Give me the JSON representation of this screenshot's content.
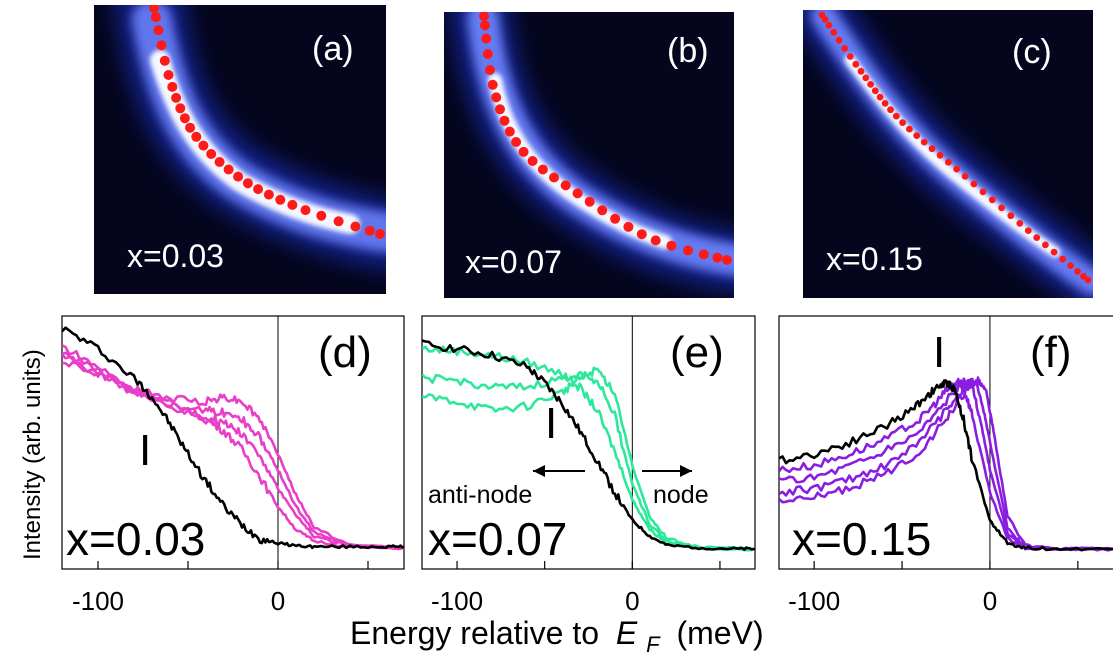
{
  "figure": {
    "xlabel": "Energy relative to",
    "xlabel_symbol": "E",
    "xlabel_subscript": "F",
    "xlabel_units": "(meV)",
    "ylabel": "Intensity  (arb. units)"
  },
  "maps": [
    {
      "label": "(a)",
      "doping_text": "x=0.03",
      "n_points": 28
    },
    {
      "label": "(b)",
      "doping_text": "x=0.07",
      "n_points": 28
    },
    {
      "label": "(c)",
      "doping_text": "x=0.15",
      "n_points": 40
    }
  ],
  "edc_panels": [
    {
      "label": "(d)",
      "doping_text": "x=0.03",
      "marker": "I",
      "color": "#e83ec8"
    },
    {
      "label": "(e)",
      "doping_text": "x=0.07",
      "marker": "I",
      "color": "#2de89a",
      "arrow_left_label": "anti-node",
      "arrow_right_label": "node"
    },
    {
      "label": "(f)",
      "doping_text": "x=0.15",
      "marker": "I",
      "color": "#8a1ee0"
    }
  ],
  "colors": {
    "map_background": "#05061e",
    "map_band": "#2a44ff",
    "map_dots": "#ff1a1a",
    "antinode_curve": "#000000"
  },
  "chart_data": [
    {
      "type": "line",
      "title": "(d)",
      "annotation": "x=0.03",
      "xlim": [
        -120,
        70
      ],
      "xticks": [
        -100,
        0
      ],
      "ylabel": "Intensity  (arb. units)",
      "series": [
        {
          "color": "#000000",
          "x": [
            -120,
            -100,
            -80,
            -70,
            -60,
            -50,
            -40,
            -30,
            -20,
            -10,
            0,
            10,
            20,
            40,
            60,
            70
          ],
          "y": [
            1.0,
            0.91,
            0.78,
            0.7,
            0.58,
            0.45,
            0.33,
            0.22,
            0.14,
            0.08,
            0.06,
            0.05,
            0.045,
            0.045,
            0.045,
            0.045
          ]
        },
        {
          "color": "#e83ec8",
          "x": [
            -120,
            -100,
            -80,
            -60,
            -40,
            -30,
            -20,
            -10,
            0,
            10,
            20,
            40,
            70
          ],
          "y": [
            0.92,
            0.83,
            0.73,
            0.67,
            0.6,
            0.55,
            0.47,
            0.35,
            0.22,
            0.12,
            0.07,
            0.045,
            0.04
          ]
        },
        {
          "color": "#e83ec8",
          "x": [
            -120,
            -100,
            -80,
            -60,
            -40,
            -30,
            -20,
            -10,
            0,
            10,
            20,
            40,
            70
          ],
          "y": [
            0.9,
            0.81,
            0.72,
            0.66,
            0.61,
            0.59,
            0.54,
            0.44,
            0.3,
            0.18,
            0.09,
            0.05,
            0.04
          ]
        },
        {
          "color": "#e83ec8",
          "x": [
            -120,
            -100,
            -80,
            -60,
            -40,
            -30,
            -20,
            -10,
            0,
            10,
            20,
            40,
            70
          ],
          "y": [
            0.88,
            0.8,
            0.72,
            0.67,
            0.64,
            0.63,
            0.6,
            0.52,
            0.38,
            0.22,
            0.11,
            0.05,
            0.04
          ]
        },
        {
          "color": "#e83ec8",
          "x": [
            -120,
            -100,
            -80,
            -60,
            -40,
            -30,
            -20,
            -10,
            0,
            10,
            20,
            40,
            70
          ],
          "y": [
            0.86,
            0.8,
            0.73,
            0.69,
            0.68,
            0.7,
            0.68,
            0.6,
            0.45,
            0.27,
            0.13,
            0.05,
            0.04
          ]
        }
      ]
    },
    {
      "type": "line",
      "title": "(e)",
      "annotation": "x=0.07",
      "xlim": [
        -120,
        70
      ],
      "xticks": [
        -100,
        0
      ],
      "series": [
        {
          "color": "#000000",
          "x": [
            -120,
            -100,
            -80,
            -60,
            -50,
            -40,
            -30,
            -20,
            -10,
            0,
            10,
            20,
            40,
            60,
            70
          ],
          "y": [
            0.93,
            0.91,
            0.88,
            0.83,
            0.76,
            0.67,
            0.55,
            0.42,
            0.28,
            0.16,
            0.09,
            0.05,
            0.04,
            0.035,
            0.035
          ]
        },
        {
          "color": "#2de89a",
          "x": [
            -120,
            -100,
            -80,
            -60,
            -40,
            -30,
            -20,
            -10,
            0,
            10,
            20,
            40,
            70
          ],
          "y": [
            0.91,
            0.9,
            0.88,
            0.85,
            0.8,
            0.74,
            0.64,
            0.46,
            0.25,
            0.12,
            0.06,
            0.04,
            0.035
          ]
        },
        {
          "color": "#2de89a",
          "x": [
            -120,
            -100,
            -80,
            -60,
            -40,
            -30,
            -20,
            -10,
            0,
            10,
            20,
            40,
            70
          ],
          "y": [
            0.78,
            0.77,
            0.74,
            0.74,
            0.78,
            0.8,
            0.77,
            0.62,
            0.32,
            0.14,
            0.07,
            0.04,
            0.035
          ]
        },
        {
          "color": "#2de89a",
          "x": [
            -120,
            -100,
            -80,
            -60,
            -40,
            -30,
            -20,
            -10,
            0,
            10,
            20,
            40,
            70
          ],
          "y": [
            0.7,
            0.68,
            0.64,
            0.66,
            0.72,
            0.78,
            0.82,
            0.72,
            0.4,
            0.17,
            0.08,
            0.04,
            0.035
          ]
        }
      ]
    },
    {
      "type": "line",
      "title": "(f)",
      "annotation": "x=0.15",
      "xlim": [
        -120,
        70
      ],
      "xticks": [
        -100,
        0
      ],
      "series": [
        {
          "color": "#000000",
          "x": [
            -120,
            -100,
            -80,
            -60,
            -45,
            -35,
            -28,
            -24,
            -20,
            -15,
            -10,
            0,
            10,
            20,
            40,
            70
          ],
          "y": [
            0.42,
            0.45,
            0.5,
            0.57,
            0.64,
            0.71,
            0.75,
            0.76,
            0.73,
            0.6,
            0.42,
            0.16,
            0.06,
            0.04,
            0.035,
            0.035
          ]
        },
        {
          "color": "#8a1ee0",
          "x": [
            -120,
            -100,
            -80,
            -60,
            -40,
            -30,
            -22,
            -18,
            -15,
            -10,
            0,
            10,
            20,
            40,
            70
          ],
          "y": [
            0.38,
            0.4,
            0.45,
            0.51,
            0.6,
            0.68,
            0.75,
            0.76,
            0.74,
            0.62,
            0.28,
            0.08,
            0.04,
            0.035,
            0.035
          ]
        },
        {
          "color": "#8a1ee0",
          "x": [
            -120,
            -100,
            -80,
            -60,
            -40,
            -25,
            -17,
            -14,
            -10,
            -5,
            0,
            10,
            20,
            40,
            70
          ],
          "y": [
            0.33,
            0.35,
            0.4,
            0.46,
            0.55,
            0.68,
            0.75,
            0.77,
            0.74,
            0.58,
            0.38,
            0.1,
            0.04,
            0.035,
            0.035
          ]
        },
        {
          "color": "#8a1ee0",
          "x": [
            -120,
            -100,
            -80,
            -60,
            -40,
            -25,
            -15,
            -11,
            -8,
            -3,
            0,
            10,
            20,
            40,
            70
          ],
          "y": [
            0.28,
            0.3,
            0.34,
            0.4,
            0.5,
            0.64,
            0.74,
            0.77,
            0.76,
            0.62,
            0.5,
            0.13,
            0.04,
            0.035,
            0.035
          ]
        },
        {
          "color": "#8a1ee0",
          "x": [
            -120,
            -100,
            -80,
            -60,
            -40,
            -25,
            -15,
            -10,
            -6,
            -2,
            2,
            10,
            20,
            40,
            70
          ],
          "y": [
            0.24,
            0.26,
            0.3,
            0.36,
            0.46,
            0.6,
            0.71,
            0.76,
            0.77,
            0.72,
            0.55,
            0.18,
            0.05,
            0.035,
            0.035
          ]
        }
      ]
    }
  ]
}
